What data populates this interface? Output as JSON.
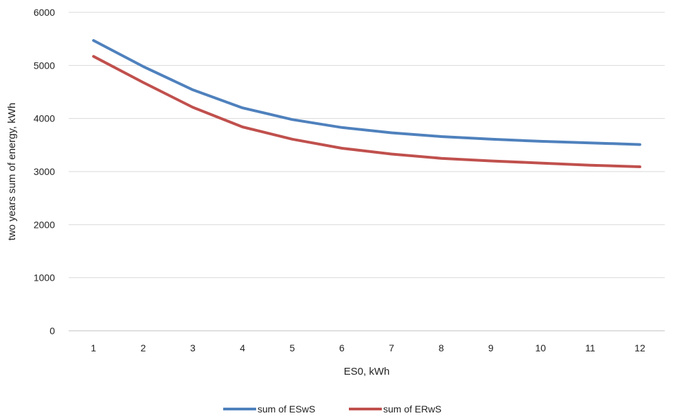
{
  "chart_data": {
    "type": "line",
    "title": "",
    "xlabel": "ES0, kWh",
    "ylabel": "two years sum of energy, kWh",
    "categories": [
      "1",
      "2",
      "3",
      "4",
      "5",
      "6",
      "7",
      "8",
      "9",
      "10",
      "11",
      "12"
    ],
    "ylim": [
      0,
      6000
    ],
    "yticks": [
      "0",
      "1000",
      "2000",
      "3000",
      "4000",
      "5000",
      "6000"
    ],
    "grid": true,
    "legend_position": "bottom",
    "series": [
      {
        "name": "sum of ESwS",
        "color": "#4F81BD",
        "values": [
          5470,
          4980,
          4540,
          4200,
          3980,
          3830,
          3730,
          3660,
          3610,
          3570,
          3540,
          3510
        ]
      },
      {
        "name": "sum of ERwS",
        "color": "#C0504D",
        "values": [
          5170,
          4680,
          4210,
          3840,
          3610,
          3440,
          3330,
          3250,
          3200,
          3160,
          3120,
          3090
        ]
      }
    ]
  }
}
